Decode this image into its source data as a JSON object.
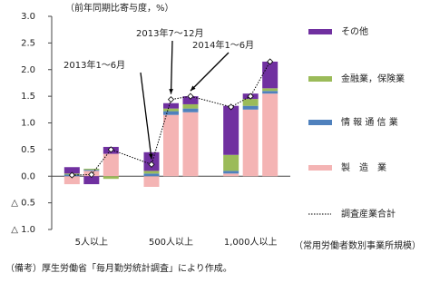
{
  "chart_data": {
    "type": "stacked-bar-line",
    "y_axis_label": "（前年同期比寄与度，%）",
    "groups": [
      "5人以上",
      "500人以上",
      "1,000人以上"
    ],
    "x_axis_note": "（常用労働者数別事業所規模）",
    "source": "（備考）厚生労働省「毎月勤労統計調査」により作成。",
    "annotations": [
      "2013年1～6月",
      "2013年7～12月",
      "2014年1～6月"
    ],
    "ylim": [
      -1.0,
      3.0
    ],
    "yticks": [
      {
        "value": 3.0,
        "label": "3.0"
      },
      {
        "value": 2.5,
        "label": "2.5"
      },
      {
        "value": 2.0,
        "label": "2.0"
      },
      {
        "value": 1.5,
        "label": "1.5"
      },
      {
        "value": 1.0,
        "label": "1.0"
      },
      {
        "value": 0.5,
        "label": "0.5"
      },
      {
        "value": 0.0,
        "label": "0.0"
      },
      {
        "value": -0.5,
        "label": "△ 0.5"
      },
      {
        "value": -1.0,
        "label": "△ 1.0"
      }
    ],
    "series": [
      {
        "name": "製　造　業",
        "color": "#f4b4b4",
        "values": [
          -0.15,
          0.1,
          0.42,
          -0.2,
          1.15,
          1.2,
          0.05,
          1.25,
          1.55
        ]
      },
      {
        "name": "情 報 通 信 業",
        "color": "#4f81bd",
        "values": [
          0.03,
          0.02,
          0.0,
          0.05,
          0.07,
          0.07,
          0.05,
          0.07,
          0.05
        ]
      },
      {
        "name": "金融業，保険業",
        "color": "#9bbb59",
        "values": [
          0.02,
          0.02,
          -0.05,
          0.05,
          0.05,
          0.08,
          0.3,
          0.13,
          0.05
        ]
      },
      {
        "name": "その他",
        "color": "#7030a0",
        "values": [
          0.12,
          -0.15,
          0.13,
          0.35,
          0.1,
          0.15,
          0.92,
          0.1,
          0.5
        ]
      },
      {
        "name": "調査産業合計",
        "type": "line",
        "color": "#000000",
        "values": [
          0.02,
          0.03,
          0.5,
          0.22,
          1.44,
          1.5,
          1.3,
          1.5,
          2.15
        ]
      }
    ]
  }
}
